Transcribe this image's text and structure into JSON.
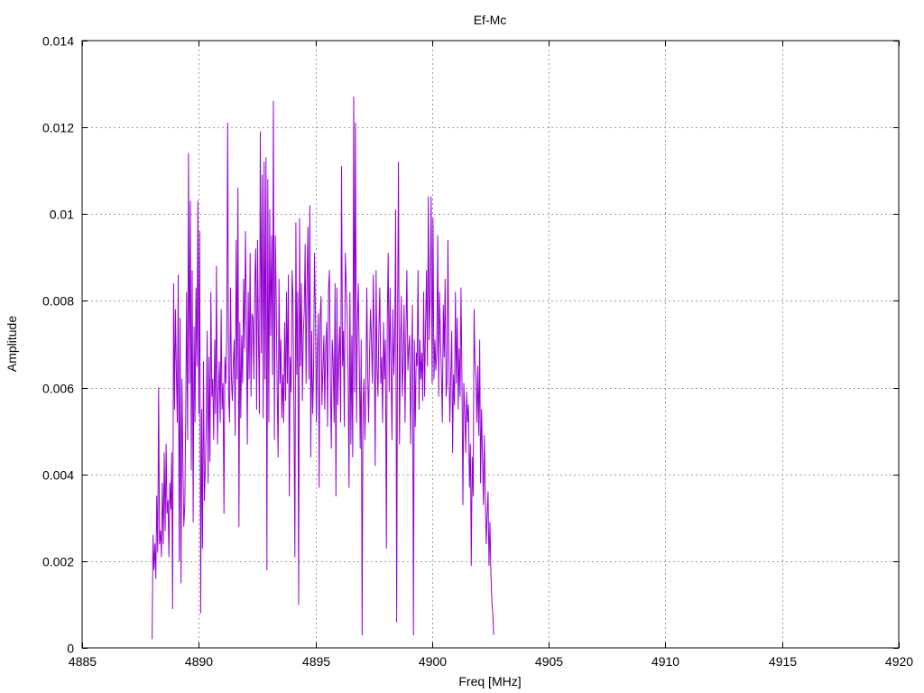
{
  "chart_data": {
    "type": "line",
    "title": "Ef-Mc",
    "xlabel": "Freq [MHz]",
    "ylabel": "Amplitude",
    "xlim": [
      4885,
      4920
    ],
    "ylim": [
      0,
      0.014
    ],
    "x_ticks": [
      4885,
      4890,
      4895,
      4900,
      4905,
      4910,
      4915,
      4920
    ],
    "x_tick_labels": [
      "4885",
      "4890",
      "4895",
      "4900",
      "4905",
      "4910",
      "4915",
      "4920"
    ],
    "y_ticks": [
      0,
      0.002,
      0.004,
      0.006,
      0.008,
      0.01,
      0.012,
      0.014
    ],
    "y_tick_labels": [
      "0",
      "0.002",
      "0.004",
      "0.006",
      "0.008",
      "0.01",
      "0.012",
      "0.014"
    ],
    "grid": true,
    "series_color": "#9400d3",
    "x_start": 4888.0,
    "x_step": 0.04,
    "series": [
      {
        "values": [
          0.0002,
          0.0026,
          0.0018,
          0.0024,
          0.0016,
          0.0035,
          0.0022,
          0.006,
          0.0024,
          0.0027,
          0.0021,
          0.0038,
          0.0024,
          0.0045,
          0.0027,
          0.0047,
          0.0031,
          0.0034,
          0.0021,
          0.0038,
          0.0032,
          0.0045,
          0.0009,
          0.0084,
          0.0055,
          0.0078,
          0.0063,
          0.0052,
          0.0086,
          0.002,
          0.0076,
          0.0015,
          0.0062,
          0.0043,
          0.0028,
          0.0033,
          0.0053,
          0.0082,
          0.0048,
          0.0114,
          0.0061,
          0.0103,
          0.0041,
          0.0087,
          0.0029,
          0.0074,
          0.0052,
          0.0083,
          0.0065,
          0.0103,
          0.0054,
          0.0096,
          0.0008,
          0.0055,
          0.0023,
          0.0066,
          0.0034,
          0.0041,
          0.0052,
          0.0073,
          0.0038,
          0.0067,
          0.0043,
          0.0082,
          0.0058,
          0.0062,
          0.0048,
          0.0071,
          0.0054,
          0.0088,
          0.0047,
          0.0059,
          0.0066,
          0.0052,
          0.0078,
          0.0055,
          0.0061,
          0.0031,
          0.0067,
          0.0061,
          0.0073,
          0.0121,
          0.0058,
          0.0052,
          0.0083,
          0.0062,
          0.0057,
          0.0066,
          0.0071,
          0.0049,
          0.0094,
          0.0062,
          0.0106,
          0.0028,
          0.0075,
          0.0053,
          0.0072,
          0.0061,
          0.0085,
          0.0069,
          0.0096,
          0.0078,
          0.0047,
          0.0082,
          0.0062,
          0.0091,
          0.0058,
          0.0077,
          0.0076,
          0.0062,
          0.0084,
          0.0092,
          0.0055,
          0.0094,
          0.0071,
          0.0054,
          0.0119,
          0.0068,
          0.0109,
          0.0053,
          0.0112,
          0.0062,
          0.0113,
          0.0018,
          0.0108,
          0.0052,
          0.0101,
          0.0072,
          0.0095,
          0.0063,
          0.0126,
          0.0048,
          0.0095,
          0.0081,
          0.0059,
          0.0044,
          0.0085,
          0.0061,
          0.0071,
          0.0053,
          0.0063,
          0.0052,
          0.0075,
          0.0057,
          0.0082,
          0.0061,
          0.0086,
          0.0035,
          0.0067,
          0.0059,
          0.0087,
          0.0081,
          0.0053,
          0.0021,
          0.0098,
          0.0063,
          0.0082,
          0.001,
          0.0099,
          0.0065,
          0.0084,
          0.0057,
          0.0072,
          0.0078,
          0.0093,
          0.0061,
          0.0085,
          0.0097,
          0.0062,
          0.0102,
          0.0044,
          0.0073,
          0.0054,
          0.0063,
          0.0091,
          0.0077,
          0.0052,
          0.0067,
          0.0077,
          0.0037,
          0.0076,
          0.0081,
          0.0056,
          0.0064,
          0.0072,
          0.0055,
          0.0069,
          0.0075,
          0.0051,
          0.0083,
          0.0087,
          0.0062,
          0.0046,
          0.0071,
          0.0066,
          0.0052,
          0.0084,
          0.0035,
          0.0083,
          0.0056,
          0.0067,
          0.0074,
          0.0052,
          0.0111,
          0.0065,
          0.0073,
          0.0051,
          0.0091,
          0.0084,
          0.0077,
          0.0063,
          0.0037,
          0.0082,
          0.0047,
          0.0072,
          0.0044,
          0.0127,
          0.0059,
          0.0121,
          0.0052,
          0.0075,
          0.0084,
          0.0066,
          0.0046,
          0.0071,
          0.0003,
          0.0056,
          0.0062,
          0.0048,
          0.0059,
          0.0083,
          0.0063,
          0.0052,
          0.0068,
          0.0078,
          0.0071,
          0.0061,
          0.0086,
          0.0073,
          0.0042,
          0.0087,
          0.0065,
          0.0058,
          0.0074,
          0.0083,
          0.0061,
          0.0067,
          0.0052,
          0.0075,
          0.0062,
          0.0071,
          0.0023,
          0.0076,
          0.0091,
          0.0059,
          0.0083,
          0.0066,
          0.0048,
          0.0078,
          0.0063,
          0.0072,
          0.0101,
          0.0006,
          0.0076,
          0.0112,
          0.0047,
          0.0068,
          0.0081,
          0.0058,
          0.0066,
          0.0079,
          0.0052,
          0.0073,
          0.0087,
          0.0064,
          0.0069,
          0.0072,
          0.0047,
          0.0066,
          0.0079,
          0.0003,
          0.0071,
          0.0051,
          0.0068,
          0.0065,
          0.0087,
          0.0055,
          0.0071,
          0.0062,
          0.0068,
          0.0057,
          0.0082,
          0.0058,
          0.0074,
          0.0087,
          0.0065,
          0.0104,
          0.0071,
          0.0082,
          0.0104,
          0.0061,
          0.0099,
          0.0062,
          0.0071,
          0.0064,
          0.0068,
          0.0095,
          0.0058,
          0.0082,
          0.0071,
          0.0063,
          0.0052,
          0.0079,
          0.0067,
          0.0085,
          0.0058,
          0.0061,
          0.0094,
          0.0066,
          0.0052,
          0.0062,
          0.0073,
          0.0045,
          0.0063,
          0.0056,
          0.0082,
          0.0061,
          0.0076,
          0.0055,
          0.0069,
          0.0058,
          0.0083,
          0.0061,
          0.0033,
          0.0061,
          0.0054,
          0.0045,
          0.0059,
          0.0052,
          0.0056,
          0.0037,
          0.0047,
          0.0019,
          0.0044,
          0.0035,
          0.0078,
          0.0066,
          0.0062,
          0.0052,
          0.0065,
          0.0049,
          0.0071,
          0.0038,
          0.0055,
          0.0044,
          0.0033,
          0.0049,
          0.0035,
          0.0024,
          0.0031,
          0.0036,
          0.0019,
          0.0029,
          0.0017,
          0.0011,
          0.0008,
          0.0003
        ]
      }
    ]
  }
}
